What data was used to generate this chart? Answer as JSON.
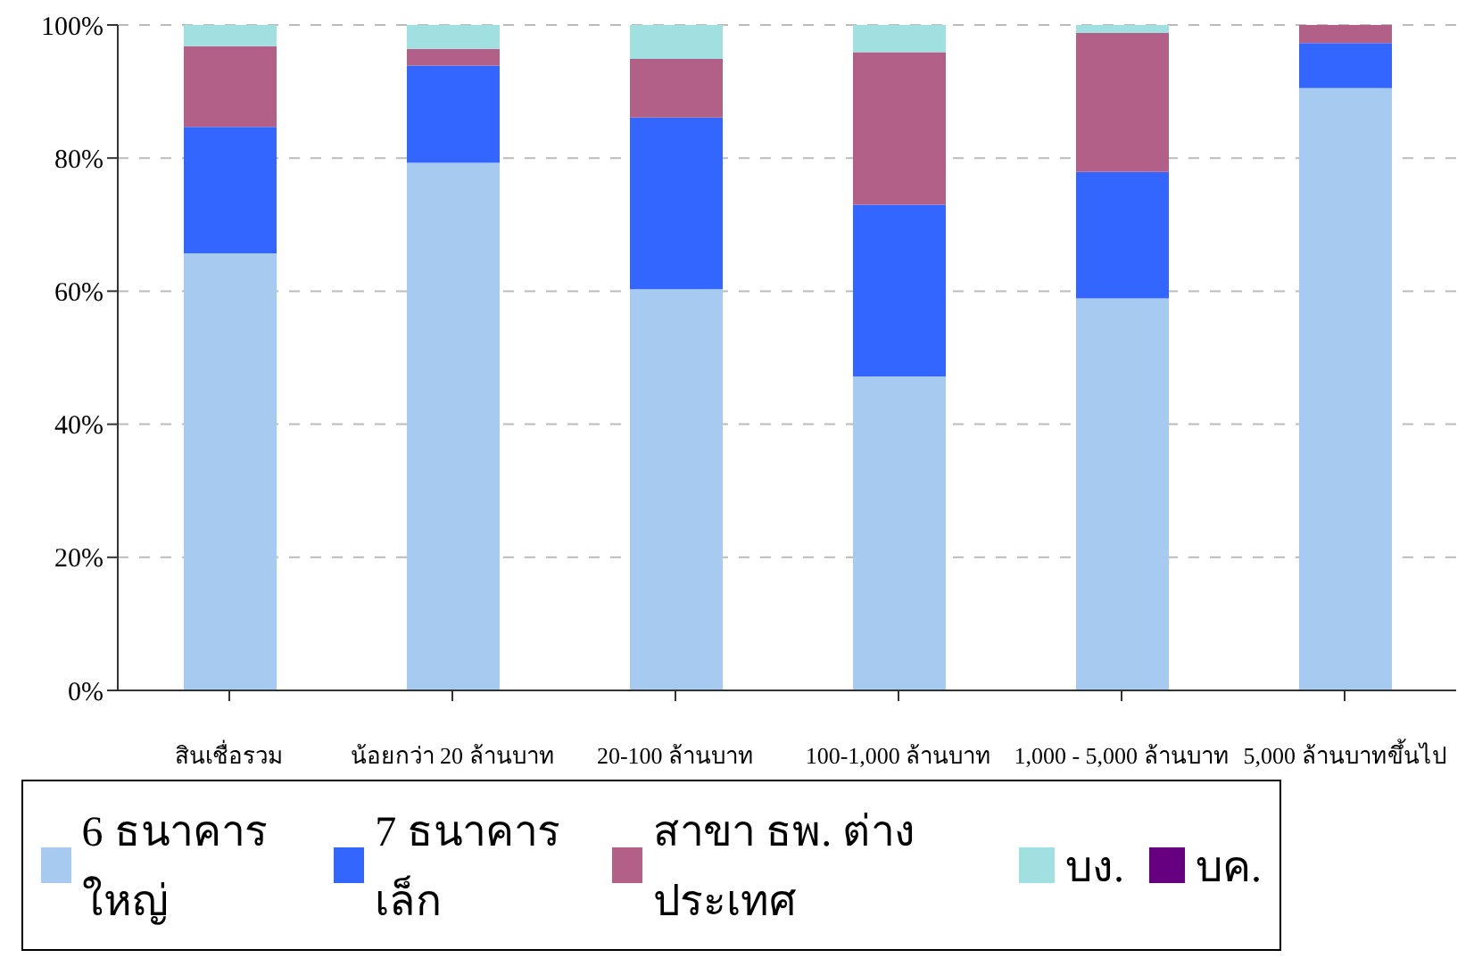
{
  "chart_data": {
    "type": "bar",
    "stacked": true,
    "categories": [
      "สินเชื่อรวม",
      "น้อยกว่า 20 ล้านบาท",
      "20-100 ล้านบาท",
      "100-1,000 ล้านบาท",
      "1,000 - 5,000 ล้านบาท",
      "5,000 ล้านบาทขึ้นไป"
    ],
    "series": [
      {
        "name": "6 ธนาคารใหญ่",
        "color": "#a6caf0",
        "values": [
          65.7,
          79.3,
          60.3,
          47.2,
          58.9,
          90.5
        ]
      },
      {
        "name": "7 ธนาคารเล็ก",
        "color": "#3366ff",
        "values": [
          19,
          14.6,
          25.8,
          25.8,
          19,
          6.8
        ]
      },
      {
        "name": "สาขา ธพ. ต่างประเทศ",
        "color": "#b36088",
        "values": [
          12.1,
          2.5,
          8.8,
          22.9,
          20.9,
          2.7
        ]
      },
      {
        "name": "บง.",
        "color": "#a0e0e0",
        "values": [
          3.2,
          3.6,
          5.1,
          4.1,
          1.2,
          0
        ]
      },
      {
        "name": "บค.",
        "color": "#660080",
        "values": [
          0,
          0,
          0,
          0,
          0,
          0
        ]
      }
    ],
    "ylim": [
      0,
      100
    ],
    "yticks": [
      {
        "value": 0,
        "label": "0%"
      },
      {
        "value": 20,
        "label": "20%"
      },
      {
        "value": 40,
        "label": "40%"
      },
      {
        "value": 60,
        "label": "60%"
      },
      {
        "value": 80,
        "label": "80%"
      },
      {
        "value": 100,
        "label": "100%"
      }
    ],
    "grid": "y",
    "legend": "bottom"
  }
}
